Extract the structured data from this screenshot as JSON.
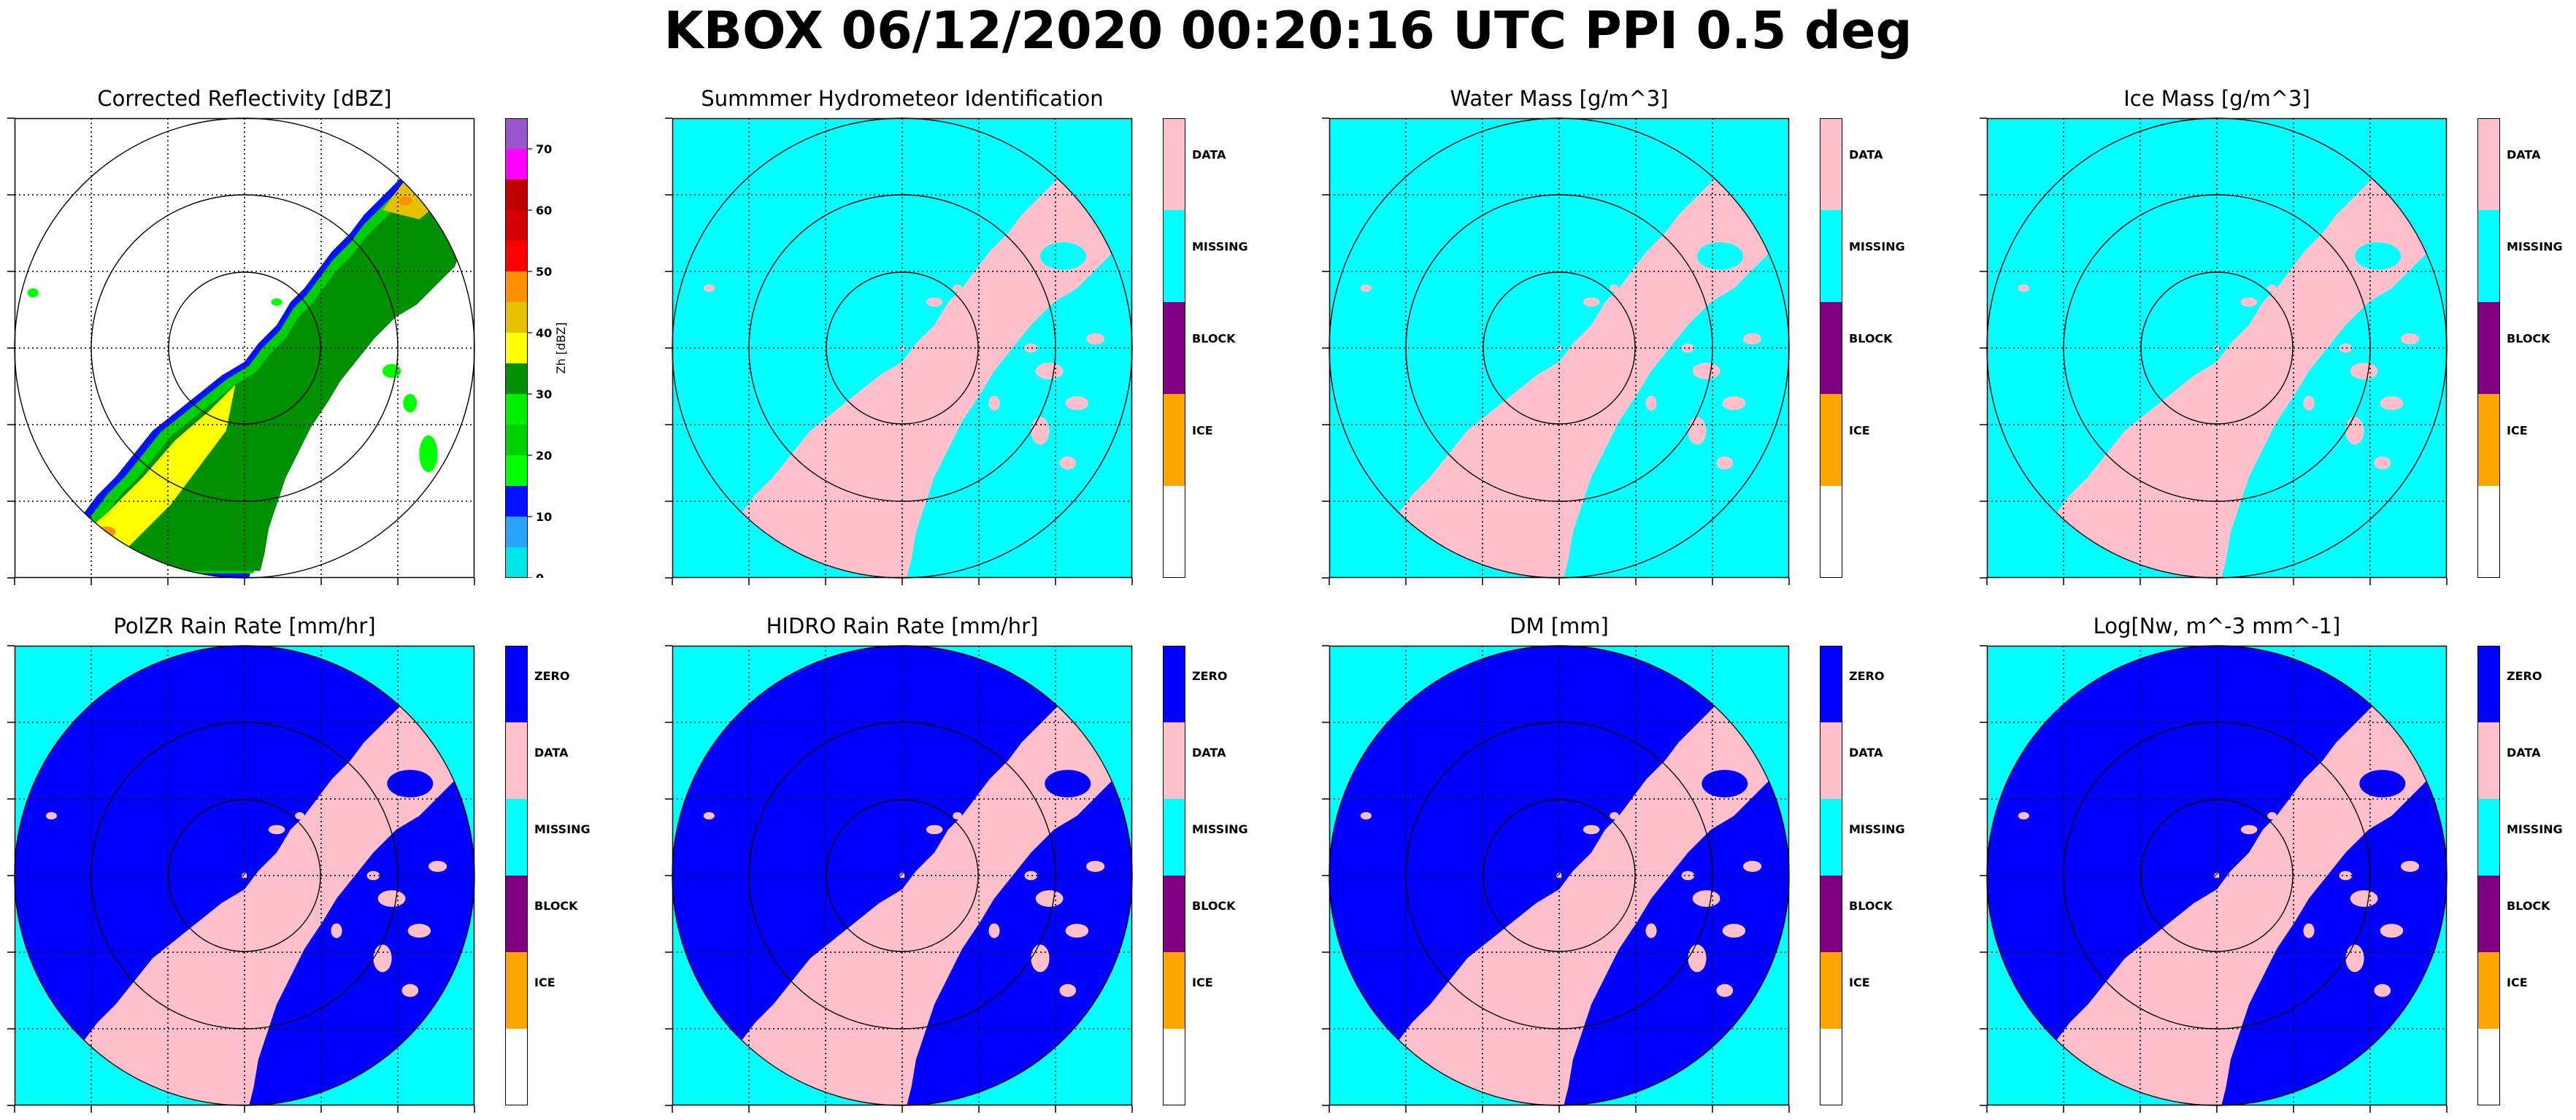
{
  "suptitle": "KBOX 06/12/2020 00:20:16 UTC PPI 0.5 deg",
  "colors": {
    "zero": "#0000ff",
    "data": "#ffc0cb",
    "missing": "#00ffff",
    "block": "#800080",
    "ice": "#ffa500",
    "blank": "#ffffff"
  },
  "panels": [
    {
      "id": "reflectivity",
      "title": "Corrected Reflectivity [dBZ]",
      "colorbar": {
        "label": "Zh [dBZ]",
        "ticks": [
          "0",
          "10",
          "20",
          "30",
          "40",
          "50",
          "60",
          "70"
        ],
        "bins": [
          {
            "from": 0,
            "to": 5,
            "color": "#00e6e6"
          },
          {
            "from": 5,
            "to": 10,
            "color": "#2aa5ff"
          },
          {
            "from": 10,
            "to": 15,
            "color": "#0012ff"
          },
          {
            "from": 15,
            "to": 20,
            "color": "#00ff00"
          },
          {
            "from": 20,
            "to": 25,
            "color": "#00d000"
          },
          {
            "from": 25,
            "to": 30,
            "color": "#00ee00"
          },
          {
            "from": 30,
            "to": 35,
            "color": "#009000"
          },
          {
            "from": 35,
            "to": 40,
            "color": "#ffff00"
          },
          {
            "from": 40,
            "to": 45,
            "color": "#e7c000"
          },
          {
            "from": 45,
            "to": 50,
            "color": "#ff9000"
          },
          {
            "from": 50,
            "to": 55,
            "color": "#ff0000"
          },
          {
            "from": 55,
            "to": 60,
            "color": "#d60000"
          },
          {
            "from": 60,
            "to": 65,
            "color": "#c00000"
          },
          {
            "from": 65,
            "to": 70,
            "color": "#ff00ff"
          },
          {
            "from": 70,
            "to": 75,
            "color": "#9955c9"
          }
        ]
      }
    },
    {
      "id": "hid",
      "title": "Summmer Hydrometeor Identification",
      "colorbar": {
        "categories": [
          "DATA",
          "MISSING",
          "BLOCK",
          "ICE",
          ""
        ]
      }
    },
    {
      "id": "water-mass",
      "title": "Water Mass [g/m^3]",
      "colorbar": {
        "categories": [
          "DATA",
          "MISSING",
          "BLOCK",
          "ICE",
          ""
        ]
      }
    },
    {
      "id": "ice-mass",
      "title": "Ice Mass [g/m^3]",
      "colorbar": {
        "categories": [
          "DATA",
          "MISSING",
          "BLOCK",
          "ICE",
          ""
        ]
      }
    },
    {
      "id": "polzr-rain-rate",
      "title": "PolZR Rain Rate [mm/hr]",
      "colorbar": {
        "categories": [
          "ZERO",
          "DATA",
          "MISSING",
          "BLOCK",
          "ICE",
          ""
        ]
      }
    },
    {
      "id": "hidro-rain-rate",
      "title": "HIDRO Rain Rate [mm/hr]",
      "colorbar": {
        "categories": [
          "ZERO",
          "DATA",
          "MISSING",
          "BLOCK",
          "ICE",
          ""
        ]
      }
    },
    {
      "id": "dm",
      "title": "DM [mm]",
      "colorbar": {
        "categories": [
          "ZERO",
          "DATA",
          "MISSING",
          "BLOCK",
          "ICE",
          ""
        ]
      }
    },
    {
      "id": "log-nw",
      "title": "Log[Nw, m^-3 mm^-1]",
      "colorbar": {
        "categories": [
          "ZERO",
          "DATA",
          "MISSING",
          "BLOCK",
          "ICE",
          ""
        ]
      }
    }
  ],
  "chart_data": {
    "type": "heatmap",
    "layout": "2x4 grid of radar PPI panels",
    "range_rings": 3,
    "grid": true,
    "reflectivity_range_dbz": [
      0,
      75
    ],
    "echo_shape": "SW-NE oriented band across the southeast half of each panel"
  }
}
